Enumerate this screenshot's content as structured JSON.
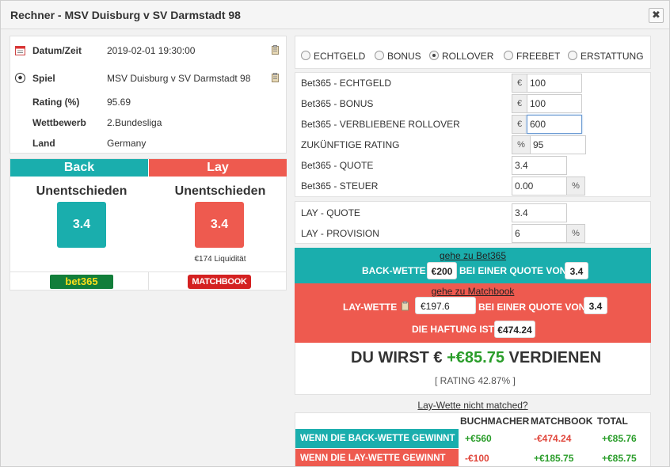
{
  "window": {
    "title": "Rechner - MSV Duisburg v SV Darmstadt 98",
    "close_label": "✖"
  },
  "info": {
    "datum_label": "Datum/Zeit",
    "datum_value": "2019-02-01 19:30:00",
    "spiel_label": "Spiel",
    "spiel_value": "MSV Duisburg v SV Darmstadt 98",
    "rating_label": "Rating (%)",
    "rating_value": "95.69",
    "wettbewerb_label": "Wettbewerb",
    "wettbewerb_value": "2.Bundesliga",
    "land_label": "Land",
    "land_value": "Germany"
  },
  "back": {
    "header": "Back",
    "selection": "Unentschieden",
    "odds": "3.4",
    "bookmaker": "bet365"
  },
  "lay": {
    "header": "Lay",
    "selection": "Unentschieden",
    "odds": "3.4",
    "liquidity": "€174 Liquidität",
    "exchange": "MATCHBOOK"
  },
  "modes": [
    {
      "label": "ECHTGELD",
      "selected": false
    },
    {
      "label": "BONUS",
      "selected": false
    },
    {
      "label": "ROLLOVER",
      "selected": true
    },
    {
      "label": "FREEBET",
      "selected": false
    },
    {
      "label": "ERSTATTUNG",
      "selected": false
    }
  ],
  "form": {
    "echtgeld_label": "Bet365 - ECHTGELD",
    "echtgeld_value": "100",
    "bonus_label": "Bet365 - BONUS",
    "bonus_value": "100",
    "rollover_label": "Bet365 - VERBLIEBENE ROLLOVER",
    "rollover_value": "600",
    "rating_label": "ZUKÜNFTIGE RATING",
    "rating_value": "95",
    "quote_label": "Bet365 - QUOTE",
    "quote_value": "3.4",
    "steuer_label": "Bet365 - STEUER",
    "steuer_value": "0.00",
    "lay_quote_label": "LAY - QUOTE",
    "lay_quote_value": "3.4",
    "lay_provision_label": "LAY - PROVISION",
    "lay_provision_value": "6",
    "euro": "€",
    "percent": "%"
  },
  "result": {
    "goto_bet365": "gehe zu Bet365",
    "back_bet_label": "BACK-WETTE",
    "back_bet_value": "€200",
    "at_odds_label": "BEI EINER QUOTE VON",
    "back_odds_value": "3.4",
    "goto_matchbook": "gehe zu Matchbook",
    "lay_bet_label": "LAY-WETTE",
    "lay_bet_value": "€197.6",
    "lay_odds_value": "3.4",
    "liability_label": "DIE HAFTUNG IST",
    "liability_value": "€474.24",
    "earn_prefix": "DU WIRST €",
    "earn_amount": "+€85.75",
    "earn_suffix": "VERDIENEN",
    "rating_note": "[ RATING 42.87% ]"
  },
  "not_matched_link": "Lay-Wette nicht matched?",
  "table": {
    "headers": [
      "BUCHMACHER",
      "MATCHBOOK",
      "TOTAL"
    ],
    "rows": [
      {
        "label": "WENN DIE BACK-WETTE GEWINNT",
        "buchmacher": "+€560",
        "matchbook": "-€474.24",
        "total": "+€85.76"
      },
      {
        "label": "WENN DIE LAY-WETTE GEWINNT",
        "buchmacher": "-€100",
        "matchbook": "+€185.75",
        "total": "+€85.75"
      }
    ]
  },
  "colors": {
    "back": "#1aaead",
    "lay": "#ee5a4f",
    "positive": "#2a9d2a",
    "negative": "#e0463b"
  }
}
